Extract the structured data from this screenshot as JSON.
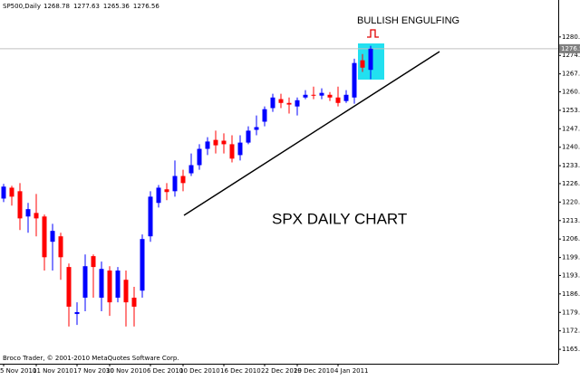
{
  "chart_data": {
    "type": "candlestick",
    "title": "SP500,Daily",
    "categories": [
      "5 Nov 2010",
      null,
      null,
      null,
      "11 Nov 2010",
      null,
      null,
      null,
      null,
      "17 Nov 2010",
      null,
      null,
      null,
      "30 Nov 2010",
      null,
      null,
      null,
      null,
      "6 Dec 2010",
      null,
      null,
      null,
      "10 Dec 2010",
      null,
      null,
      null,
      null,
      "16 Dec 2010",
      null,
      null,
      null,
      null,
      "22 Dec 2010",
      null,
      null,
      null,
      "29 Dec 2010",
      null,
      null,
      null,
      null,
      "4 Jan 2011",
      null,
      null,
      null,
      null
    ],
    "open": [
      1221.4,
      1225.4,
      1224.1,
      1214.8,
      1216.1,
      1214.8,
      1205.5,
      1207.5,
      1196.2,
      1178.9,
      1184.9,
      1200.2,
      1184.9,
      1194.9,
      1184.9,
      1191.5,
      1184.9,
      1187.5,
      1207.5,
      1219.8,
      1224.8,
      1224.1,
      1229.7,
      1230.7,
      1233.7,
      1239.7,
      1243.0,
      1242.7,
      1241.4,
      1237.4,
      1242.0,
      1246.7,
      1249.7,
      1254.7,
      1258.0,
      1256.6,
      1255.3,
      1258.6,
      1259.6,
      1259.3,
      1259.6,
      1258.6,
      1257.3,
      1258.6,
      1272.3,
      1268.78
    ],
    "high": [
      1226.8,
      1226.1,
      1227.1,
      1219.8,
      1223.1,
      1215.5,
      1212.1,
      1208.8,
      1197.5,
      1183.2,
      1200.8,
      1200.8,
      1198.2,
      1196.5,
      1196.2,
      1194.9,
      1188.9,
      1208.2,
      1224.1,
      1226.4,
      1227.1,
      1235.4,
      1232.0,
      1238.0,
      1241.4,
      1244.0,
      1246.4,
      1245.4,
      1244.7,
      1244.7,
      1248.0,
      1252.0,
      1255.3,
      1260.0,
      1260.0,
      1258.6,
      1258.6,
      1261.3,
      1262.6,
      1262.0,
      1260.6,
      1262.6,
      1261.3,
      1272.9,
      1274.6,
      1277.63
    ],
    "low": [
      1220.1,
      1218.8,
      1209.8,
      1208.8,
      1207.5,
      1194.9,
      1194.9,
      1191.5,
      1174.3,
      1174.9,
      1179.9,
      1184.9,
      1179.9,
      1178.2,
      1183.2,
      1174.3,
      1174.3,
      1184.9,
      1205.5,
      1218.1,
      1220.8,
      1222.1,
      1224.1,
      1229.7,
      1232.0,
      1237.4,
      1238.0,
      1238.0,
      1234.7,
      1235.4,
      1241.4,
      1244.7,
      1248.0,
      1253.3,
      1254.7,
      1252.7,
      1252.0,
      1258.0,
      1258.0,
      1258.0,
      1257.3,
      1255.3,
      1256.6,
      1256.3,
      1268.0,
      1265.36
    ],
    "close": [
      1225.8,
      1222.1,
      1214.1,
      1217.5,
      1214.1,
      1199.8,
      1209.5,
      1199.8,
      1181.6,
      1179.6,
      1196.5,
      1196.2,
      1195.5,
      1183.2,
      1194.9,
      1183.2,
      1181.6,
      1206.5,
      1222.1,
      1225.4,
      1223.8,
      1229.7,
      1227.1,
      1233.7,
      1239.7,
      1242.4,
      1241.0,
      1241.4,
      1236.1,
      1242.0,
      1246.4,
      1247.7,
      1254.3,
      1258.6,
      1256.6,
      1256.0,
      1257.6,
      1259.6,
      1259.3,
      1260.3,
      1258.6,
      1256.6,
      1259.6,
      1271.3,
      1269.6,
      1276.56
    ],
    "up_color": "#0000ff",
    "down_color": "#ff0000",
    "ylim": [
      1160.6,
      1289.5
    ],
    "yticks": [
      {
        "value": 1280.9,
        "label": "1280.90"
      },
      {
        "value": 1274.1,
        "label": "1274.10"
      },
      {
        "value": 1267.3,
        "label": "1267.30"
      },
      {
        "value": 1260.7,
        "label": "1260.70"
      },
      {
        "value": 1253.9,
        "label": "1253.90"
      },
      {
        "value": 1247.1,
        "label": "1247.10"
      },
      {
        "value": 1240.3,
        "label": "1240.30"
      },
      {
        "value": 1233.5,
        "label": "1233.50"
      },
      {
        "value": 1226.9,
        "label": "1226.90"
      },
      {
        "value": 1220.1,
        "label": "1220.10"
      },
      {
        "value": 1213.3,
        "label": "1213.30"
      },
      {
        "value": 1206.5,
        "label": "1206.50"
      },
      {
        "value": 1199.7,
        "label": "1199.70"
      },
      {
        "value": 1193.1,
        "label": "1193.10"
      },
      {
        "value": 1186.3,
        "label": "1186.30"
      },
      {
        "value": 1179.5,
        "label": "1179.50"
      },
      {
        "value": 1172.7,
        "label": "1172.70"
      },
      {
        "value": 1165.9,
        "label": "1165.90"
      }
    ],
    "annotations": [
      "BULLISH ENGULFING",
      "SPX DAILY CHART"
    ],
    "footer": "Broco Trader, © 2001-2010 MetaQuotes Software Corp."
  }
}
